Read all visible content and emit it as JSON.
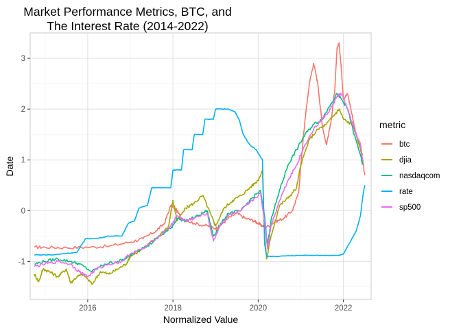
{
  "chart_data": {
    "type": "line",
    "title": "Market Performance Metrics, BTC, and\nThe Interest Rate (2014-2022)",
    "xlabel": "Normalized Value",
    "ylabel": "Date",
    "xlim": [
      2014.65,
      2022.65
    ],
    "ylim": [
      -1.75,
      3.5
    ],
    "x_ticks": [
      2016,
      2018,
      2020,
      2022
    ],
    "y_ticks": [
      -1,
      0,
      1,
      2,
      3
    ],
    "grid": true,
    "legend": {
      "title": "metric",
      "position": "right"
    },
    "series": [
      {
        "name": "btc",
        "color": "#F8766D",
        "points": [
          [
            2014.75,
            -0.72
          ],
          [
            2015.0,
            -0.72
          ],
          [
            2015.5,
            -0.73
          ],
          [
            2016.0,
            -0.72
          ],
          [
            2016.5,
            -0.7
          ],
          [
            2017.0,
            -0.62
          ],
          [
            2017.3,
            -0.55
          ],
          [
            2017.6,
            -0.4
          ],
          [
            2017.8,
            -0.25
          ],
          [
            2017.95,
            0.1
          ],
          [
            2018.05,
            0.05
          ],
          [
            2018.2,
            -0.15
          ],
          [
            2018.5,
            -0.25
          ],
          [
            2018.8,
            -0.3
          ],
          [
            2019.0,
            -0.35
          ],
          [
            2019.1,
            -0.3
          ],
          [
            2019.3,
            -0.15
          ],
          [
            2019.5,
            -0.05
          ],
          [
            2019.7,
            -0.15
          ],
          [
            2019.9,
            -0.2
          ],
          [
            2020.0,
            -0.25
          ],
          [
            2020.1,
            -0.3
          ],
          [
            2020.2,
            -0.32
          ],
          [
            2020.4,
            -0.22
          ],
          [
            2020.6,
            -0.15
          ],
          [
            2020.8,
            0.0
          ],
          [
            2020.95,
            0.35
          ],
          [
            2021.0,
            0.9
          ],
          [
            2021.1,
            1.8
          ],
          [
            2021.2,
            2.5
          ],
          [
            2021.3,
            2.9
          ],
          [
            2021.4,
            2.5
          ],
          [
            2021.5,
            1.7
          ],
          [
            2021.6,
            1.3
          ],
          [
            2021.7,
            1.7
          ],
          [
            2021.8,
            2.4
          ],
          [
            2021.85,
            3.2
          ],
          [
            2021.9,
            3.3
          ],
          [
            2021.95,
            2.8
          ],
          [
            2022.0,
            2.2
          ],
          [
            2022.1,
            2.3
          ],
          [
            2022.2,
            1.9
          ],
          [
            2022.3,
            1.5
          ],
          [
            2022.4,
            1.2
          ],
          [
            2022.45,
            1.0
          ],
          [
            2022.5,
            0.7
          ]
        ]
      },
      {
        "name": "djia",
        "color": "#A3A500",
        "points": [
          [
            2014.75,
            -1.25
          ],
          [
            2014.85,
            -1.4
          ],
          [
            2014.95,
            -1.15
          ],
          [
            2015.1,
            -1.2
          ],
          [
            2015.3,
            -1.3
          ],
          [
            2015.5,
            -1.15
          ],
          [
            2015.6,
            -1.42
          ],
          [
            2015.75,
            -1.3
          ],
          [
            2015.9,
            -1.25
          ],
          [
            2016.1,
            -1.45
          ],
          [
            2016.3,
            -1.2
          ],
          [
            2016.5,
            -1.25
          ],
          [
            2016.7,
            -1.15
          ],
          [
            2016.9,
            -1.05
          ],
          [
            2017.0,
            -0.9
          ],
          [
            2017.3,
            -0.75
          ],
          [
            2017.6,
            -0.55
          ],
          [
            2017.9,
            -0.3
          ],
          [
            2018.0,
            0.2
          ],
          [
            2018.1,
            -0.2
          ],
          [
            2018.3,
            0.05
          ],
          [
            2018.5,
            0.15
          ],
          [
            2018.7,
            0.3
          ],
          [
            2018.9,
            -0.1
          ],
          [
            2019.0,
            -0.3
          ],
          [
            2019.2,
            0.05
          ],
          [
            2019.4,
            0.2
          ],
          [
            2019.6,
            0.3
          ],
          [
            2019.8,
            0.45
          ],
          [
            2020.0,
            0.6
          ],
          [
            2020.1,
            0.8
          ],
          [
            2020.15,
            -0.5
          ],
          [
            2020.2,
            -0.95
          ],
          [
            2020.3,
            -0.5
          ],
          [
            2020.5,
            0.1
          ],
          [
            2020.7,
            0.25
          ],
          [
            2020.9,
            0.45
          ],
          [
            2021.0,
            0.9
          ],
          [
            2021.2,
            1.4
          ],
          [
            2021.4,
            1.6
          ],
          [
            2021.6,
            1.7
          ],
          [
            2021.8,
            1.9
          ],
          [
            2021.9,
            2.0
          ],
          [
            2022.0,
            1.8
          ],
          [
            2022.2,
            1.7
          ],
          [
            2022.3,
            1.5
          ],
          [
            2022.45,
            1.1
          ]
        ]
      },
      {
        "name": "nasdaqcom",
        "color": "#00BF7D",
        "points": [
          [
            2014.75,
            -1.05
          ],
          [
            2015.0,
            -1.0
          ],
          [
            2015.3,
            -0.95
          ],
          [
            2015.6,
            -1.0
          ],
          [
            2015.8,
            -1.05
          ],
          [
            2016.1,
            -1.2
          ],
          [
            2016.4,
            -1.05
          ],
          [
            2016.7,
            -1.0
          ],
          [
            2016.9,
            -0.95
          ],
          [
            2017.1,
            -0.8
          ],
          [
            2017.4,
            -0.7
          ],
          [
            2017.7,
            -0.5
          ],
          [
            2017.95,
            -0.35
          ],
          [
            2018.1,
            -0.15
          ],
          [
            2018.3,
            -0.2
          ],
          [
            2018.6,
            -0.1
          ],
          [
            2018.8,
            0.0
          ],
          [
            2018.95,
            -0.5
          ],
          [
            2019.1,
            -0.3
          ],
          [
            2019.3,
            -0.05
          ],
          [
            2019.6,
            0.0
          ],
          [
            2019.8,
            0.2
          ],
          [
            2020.05,
            0.4
          ],
          [
            2020.15,
            -0.1
          ],
          [
            2020.22,
            -0.7
          ],
          [
            2020.3,
            -0.2
          ],
          [
            2020.5,
            0.4
          ],
          [
            2020.7,
            0.9
          ],
          [
            2020.9,
            1.2
          ],
          [
            2021.1,
            1.5
          ],
          [
            2021.3,
            1.7
          ],
          [
            2021.5,
            1.8
          ],
          [
            2021.7,
            2.1
          ],
          [
            2021.85,
            2.3
          ],
          [
            2021.95,
            2.2
          ],
          [
            2022.1,
            2.0
          ],
          [
            2022.25,
            1.5
          ],
          [
            2022.4,
            1.1
          ],
          [
            2022.45,
            0.9
          ]
        ]
      },
      {
        "name": "rate",
        "color": "#00B0F6",
        "points": [
          [
            2014.75,
            -0.87
          ],
          [
            2015.2,
            -0.87
          ],
          [
            2015.4,
            -0.85
          ],
          [
            2015.75,
            -0.82
          ],
          [
            2015.95,
            -0.55
          ],
          [
            2016.2,
            -0.55
          ],
          [
            2016.5,
            -0.5
          ],
          [
            2016.8,
            -0.5
          ],
          [
            2016.95,
            -0.25
          ],
          [
            2017.1,
            -0.2
          ],
          [
            2017.2,
            0.05
          ],
          [
            2017.4,
            0.1
          ],
          [
            2017.5,
            0.45
          ],
          [
            2017.95,
            0.45
          ],
          [
            2018.0,
            0.8
          ],
          [
            2018.2,
            0.8
          ],
          [
            2018.25,
            1.2
          ],
          [
            2018.45,
            1.2
          ],
          [
            2018.5,
            1.5
          ],
          [
            2018.7,
            1.5
          ],
          [
            2018.75,
            1.8
          ],
          [
            2018.95,
            1.8
          ],
          [
            2019.0,
            2.0
          ],
          [
            2019.3,
            2.0
          ],
          [
            2019.45,
            1.95
          ],
          [
            2019.55,
            1.8
          ],
          [
            2019.65,
            1.5
          ],
          [
            2019.8,
            1.3
          ],
          [
            2019.95,
            1.2
          ],
          [
            2020.1,
            1.0
          ],
          [
            2020.15,
            -0.65
          ],
          [
            2020.2,
            -0.9
          ],
          [
            2020.5,
            -0.9
          ],
          [
            2021.0,
            -0.88
          ],
          [
            2021.5,
            -0.88
          ],
          [
            2021.9,
            -0.88
          ],
          [
            2022.0,
            -0.85
          ],
          [
            2022.2,
            -0.55
          ],
          [
            2022.3,
            -0.4
          ],
          [
            2022.4,
            -0.1
          ],
          [
            2022.45,
            0.25
          ],
          [
            2022.5,
            0.5
          ]
        ]
      },
      {
        "name": "sp500",
        "color": "#E76BF3",
        "points": [
          [
            2014.75,
            -1.1
          ],
          [
            2015.0,
            -1.05
          ],
          [
            2015.3,
            -1.0
          ],
          [
            2015.6,
            -1.05
          ],
          [
            2015.8,
            -1.2
          ],
          [
            2016.0,
            -1.3
          ],
          [
            2016.2,
            -1.15
          ],
          [
            2016.5,
            -1.05
          ],
          [
            2016.8,
            -1.0
          ],
          [
            2017.0,
            -0.85
          ],
          [
            2017.3,
            -0.75
          ],
          [
            2017.6,
            -0.55
          ],
          [
            2017.95,
            -0.3
          ],
          [
            2018.1,
            -0.1
          ],
          [
            2018.3,
            -0.2
          ],
          [
            2018.5,
            -0.15
          ],
          [
            2018.8,
            -0.05
          ],
          [
            2018.95,
            -0.6
          ],
          [
            2019.1,
            -0.3
          ],
          [
            2019.3,
            -0.1
          ],
          [
            2019.6,
            0.0
          ],
          [
            2019.8,
            0.15
          ],
          [
            2020.05,
            0.35
          ],
          [
            2020.15,
            -0.2
          ],
          [
            2020.22,
            -0.75
          ],
          [
            2020.3,
            -0.3
          ],
          [
            2020.5,
            0.2
          ],
          [
            2020.7,
            0.6
          ],
          [
            2020.9,
            0.9
          ],
          [
            2021.1,
            1.3
          ],
          [
            2021.3,
            1.6
          ],
          [
            2021.5,
            1.8
          ],
          [
            2021.7,
            2.0
          ],
          [
            2021.85,
            2.25
          ],
          [
            2021.95,
            2.3
          ],
          [
            2022.1,
            2.0
          ],
          [
            2022.25,
            1.6
          ],
          [
            2022.4,
            1.3
          ],
          [
            2022.45,
            1.0
          ]
        ]
      }
    ]
  }
}
